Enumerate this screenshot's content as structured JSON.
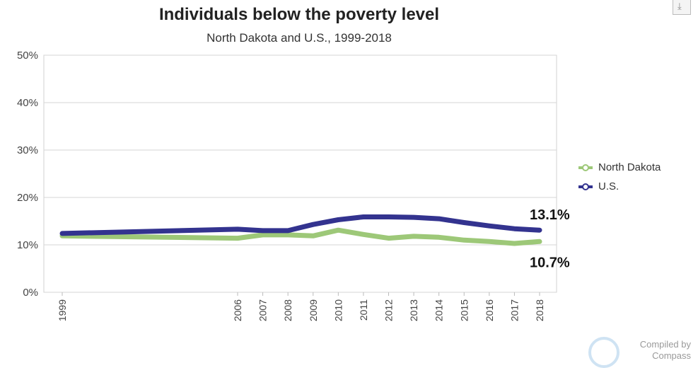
{
  "chart_data": {
    "type": "line",
    "title": "Individuals below the poverty level",
    "subtitle": "North Dakota and U.S., 1999-2018",
    "x": [
      "1999",
      "2006",
      "2007",
      "2008",
      "2009",
      "2010",
      "2011",
      "2012",
      "2013",
      "2014",
      "2015",
      "2016",
      "2017",
      "2018"
    ],
    "series": [
      {
        "name": "North Dakota",
        "color": "#9dc878",
        "values": [
          11.9,
          11.4,
          12.1,
          12.1,
          11.9,
          13.1,
          12.2,
          11.4,
          11.8,
          11.6,
          11.0,
          10.7,
          10.3,
          10.7
        ]
      },
      {
        "name": "U.S.",
        "color": "#33338f",
        "values": [
          12.4,
          13.3,
          13.0,
          13.0,
          14.3,
          15.3,
          15.9,
          15.9,
          15.8,
          15.5,
          14.7,
          14.0,
          13.4,
          13.1
        ]
      }
    ],
    "ylim": [
      0,
      50
    ],
    "yticks": [
      "0%",
      "10%",
      "20%",
      "30%",
      "40%",
      "50%"
    ],
    "grid": true,
    "legend": "right",
    "annotations": [
      {
        "text": "13.1%",
        "series": "U.S."
      },
      {
        "text": "10.7%",
        "series": "North Dakota"
      }
    ]
  },
  "ui": {
    "credit_line1": "Compiled by",
    "credit_line2": "Compass",
    "download_icon": "download-icon"
  }
}
